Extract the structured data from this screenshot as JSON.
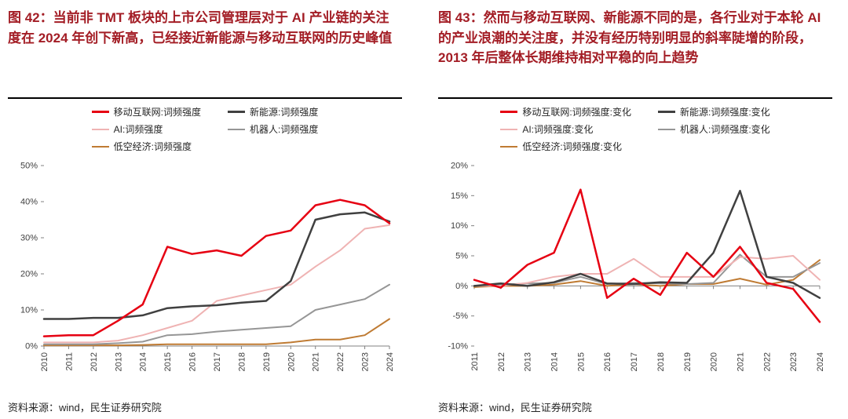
{
  "colors": {
    "title_red": "#a31d25",
    "source_text": "#262626",
    "rule_black": "#000000"
  },
  "figures": [
    {
      "source": "资料来源：wind，民生证券研究院"
    },
    {
      "source": "资料来源：wind，民生证券研究院"
    }
  ],
  "chart_data": [
    {
      "type": "line",
      "title": "图 42：当前非 TMT 板块的上市公司管理层对于 AI 产业链的关注度在 2024 年创下新高，已经接近新能源与移动互联网的历史峰值",
      "x": [
        2010,
        2011,
        2012,
        2013,
        2014,
        2015,
        2016,
        2017,
        2018,
        2019,
        2020,
        2021,
        2022,
        2023,
        2024
      ],
      "series": [
        {
          "name": "移动互联网:词频强度",
          "color": "#e60012",
          "stroke_width": 2.5,
          "values": [
            2.7,
            3.0,
            3.0,
            7.0,
            11.5,
            27.5,
            25.5,
            26.5,
            25.0,
            30.5,
            32.0,
            39.0,
            40.5,
            39.0,
            34.0
          ]
        },
        {
          "name": "新能源:词频强度",
          "color": "#404040",
          "stroke_width": 2.5,
          "values": [
            7.5,
            7.5,
            7.8,
            7.8,
            8.5,
            10.5,
            11.0,
            11.3,
            12.0,
            12.5,
            18.0,
            35.0,
            36.5,
            37.0,
            34.5
          ]
        },
        {
          "name": "AI:词频强度",
          "color": "#efb3b3",
          "stroke_width": 2,
          "values": [
            1.0,
            1.0,
            1.0,
            1.5,
            3.0,
            5.0,
            7.0,
            12.5,
            14.0,
            15.5,
            17.0,
            22.0,
            26.5,
            32.5,
            33.5
          ]
        },
        {
          "name": "机器人:词频强度",
          "color": "#969696",
          "stroke_width": 2,
          "values": [
            0.5,
            0.5,
            0.5,
            0.8,
            1.2,
            3.0,
            3.3,
            4.0,
            4.5,
            5.0,
            5.5,
            10.0,
            11.5,
            13.0,
            17.0
          ]
        },
        {
          "name": "低空经济:词频强度",
          "color": "#bf7b33",
          "stroke_width": 2,
          "values": [
            0.2,
            0.2,
            0.2,
            0.2,
            0.3,
            0.5,
            0.5,
            0.5,
            0.5,
            0.5,
            1.0,
            1.8,
            1.8,
            3.0,
            7.5
          ]
        }
      ],
      "xlabel": "",
      "ylabel": "",
      "ylim": [
        0,
        50
      ],
      "ytick_step": 10,
      "ytick_format": "percent",
      "grid": false,
      "legend_position": "top"
    },
    {
      "type": "line",
      "title": "图 43：然而与移动互联网、新能源不同的是，各行业对于本轮 AI 的产业浪潮的关注度，并没有经历特别明显的斜率陡增的阶段，2013 年后整体长期维持相对平稳的向上趋势",
      "x": [
        2011,
        2012,
        2013,
        2014,
        2015,
        2016,
        2017,
        2018,
        2019,
        2020,
        2021,
        2022,
        2023,
        2024
      ],
      "series": [
        {
          "name": "移动互联网:词频强度:变化",
          "color": "#e60012",
          "stroke_width": 2.5,
          "values": [
            1.0,
            -0.3,
            3.5,
            5.5,
            16.0,
            -2.0,
            1.2,
            -1.5,
            5.5,
            1.5,
            6.5,
            0.5,
            -0.5,
            -6.0
          ]
        },
        {
          "name": "新能源:词频强度:变化",
          "color": "#404040",
          "stroke_width": 2.5,
          "values": [
            0.0,
            0.4,
            0.0,
            0.6,
            2.0,
            0.4,
            0.3,
            0.6,
            0.5,
            5.5,
            15.8,
            1.5,
            0.5,
            -2.0
          ]
        },
        {
          "name": "AI:词频强度:变化",
          "color": "#efb3b3",
          "stroke_width": 2,
          "values": [
            0.0,
            0.0,
            0.5,
            1.5,
            2.0,
            2.0,
            4.5,
            1.5,
            1.5,
            1.5,
            4.8,
            4.5,
            5.0,
            1.0
          ]
        },
        {
          "name": "机器人:词频强度:变化",
          "color": "#969696",
          "stroke_width": 2,
          "values": [
            0.0,
            0.2,
            0.4,
            0.5,
            1.5,
            0.3,
            0.5,
            0.4,
            0.3,
            0.5,
            5.2,
            1.5,
            1.5,
            3.8
          ]
        },
        {
          "name": "低空经济:词频强度:变化",
          "color": "#bf7b33",
          "stroke_width": 2,
          "values": [
            -0.2,
            0.0,
            0.0,
            0.2,
            0.8,
            0.0,
            0.3,
            0.0,
            0.3,
            0.3,
            1.2,
            0.2,
            1.0,
            4.3
          ]
        }
      ],
      "xlabel": "",
      "ylabel": "",
      "ylim": [
        -10,
        20
      ],
      "ytick_step": 5,
      "ytick_format": "percent",
      "grid": false,
      "legend_position": "top"
    }
  ]
}
